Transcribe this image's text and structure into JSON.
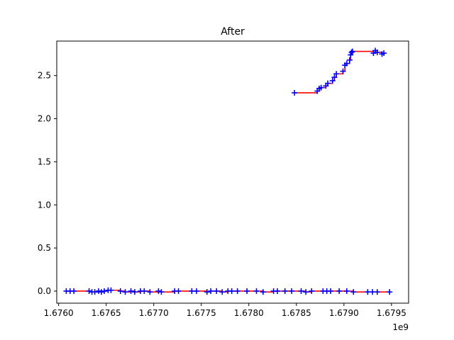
{
  "chart_data": {
    "type": "scatter",
    "title": "After",
    "xlabel": "",
    "ylabel": "",
    "x_offset_label": "1e9",
    "xlim": [
      1.67598,
      1.67968
    ],
    "ylim": [
      -0.14,
      2.9
    ],
    "x_ticks": [
      1.676,
      1.6765,
      1.677,
      1.6775,
      1.678,
      1.6785,
      1.679,
      1.6795
    ],
    "x_tick_labels": [
      "1.6760",
      "1.6765",
      "1.6770",
      "1.6775",
      "1.6780",
      "1.6785",
      "1.6790",
      "1.6795"
    ],
    "y_ticks": [
      0.0,
      0.5,
      1.0,
      1.5,
      2.0,
      2.5
    ],
    "y_tick_labels": [
      "0.0",
      "0.5",
      "1.0",
      "1.5",
      "2.0",
      "2.5"
    ],
    "grid": false,
    "colors": {
      "line": "#ff0000",
      "marker": "#0000ff"
    },
    "series": [
      {
        "marker": "+",
        "line_style": "step",
        "x": [
          1.67608,
          1.67612,
          1.67616,
          1.67632,
          1.67635,
          1.67638,
          1.67642,
          1.67645,
          1.67648,
          1.67652,
          1.67655,
          1.67665,
          1.6767,
          1.67676,
          1.6768,
          1.67686,
          1.6769,
          1.67696,
          1.67705,
          1.67708,
          1.67722,
          1.67726,
          1.6774,
          1.67745,
          1.67756,
          1.6776,
          1.67766,
          1.67772,
          1.67778,
          1.67782,
          1.67788,
          1.67798,
          1.67808,
          1.67815,
          1.67826,
          1.6783,
          1.67838,
          1.67845,
          1.67855,
          1.6786,
          1.67866,
          1.67878,
          1.67882,
          1.67886,
          1.67895,
          1.67903,
          1.6791,
          1.67925,
          1.6793,
          1.67935,
          1.67948
        ],
        "y": [
          0.0,
          0.0,
          0.0,
          0.0,
          -0.01,
          -0.01,
          0.0,
          -0.01,
          0.0,
          0.01,
          0.01,
          0.0,
          -0.01,
          0.0,
          -0.01,
          0.0,
          0.0,
          -0.01,
          0.0,
          -0.01,
          0.0,
          0.0,
          0.0,
          0.0,
          -0.01,
          0.0,
          0.0,
          -0.01,
          0.0,
          0.0,
          0.0,
          0.0,
          0.0,
          -0.01,
          0.0,
          0.0,
          0.0,
          0.0,
          0.0,
          -0.01,
          0.0,
          0.0,
          0.0,
          0.0,
          0.0,
          0.0,
          -0.01,
          -0.01,
          -0.01,
          -0.01,
          -0.01
        ]
      },
      {
        "marker": "+",
        "line_style": "step",
        "x": [
          1.67848,
          1.67872,
          1.67874,
          1.67876,
          1.67881,
          1.67883,
          1.67888,
          1.6789,
          1.67892,
          1.67899,
          1.67901,
          1.67903,
          1.67906,
          1.67907,
          1.67908,
          1.67909,
          1.67931,
          1.67933,
          1.67935,
          1.6794,
          1.67942
        ],
        "y": [
          2.3,
          2.32,
          2.35,
          2.36,
          2.38,
          2.41,
          2.44,
          2.48,
          2.52,
          2.55,
          2.62,
          2.64,
          2.68,
          2.74,
          2.77,
          2.78,
          2.76,
          2.79,
          2.77,
          2.75,
          2.76
        ]
      }
    ]
  }
}
